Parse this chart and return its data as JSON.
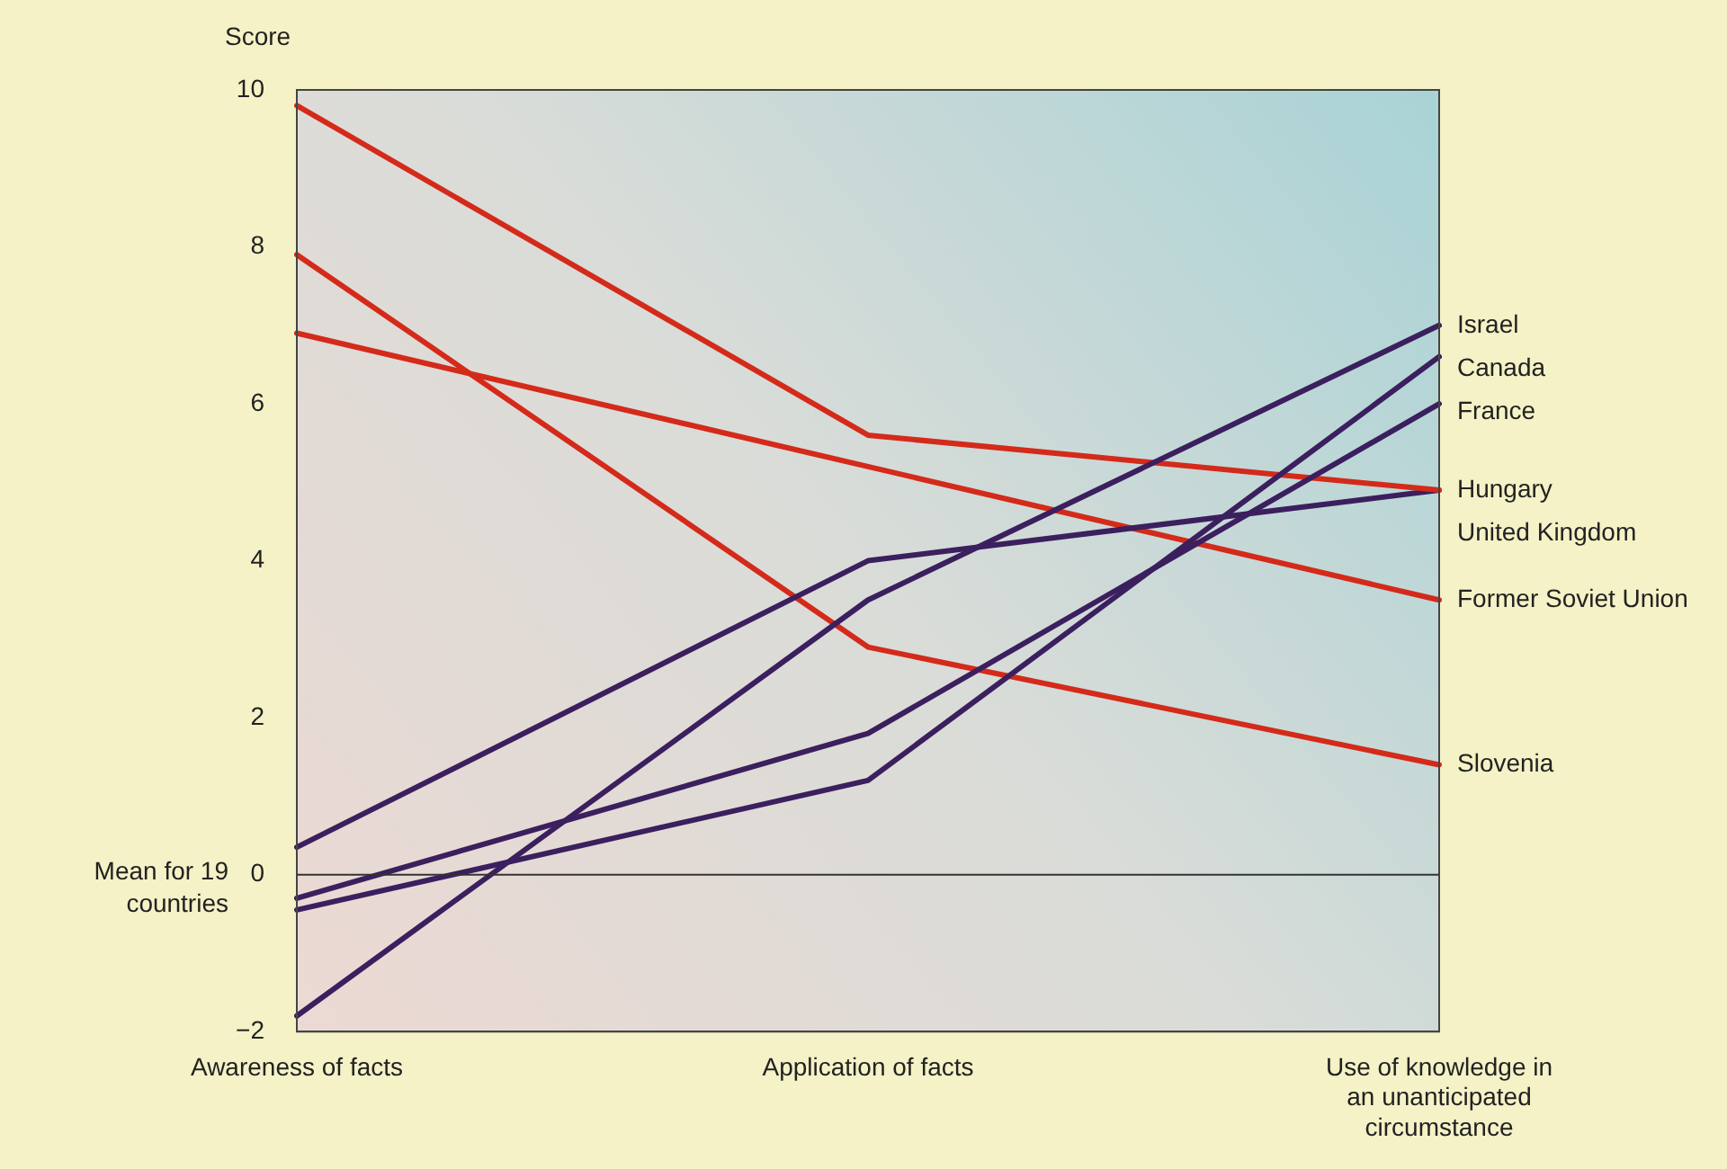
{
  "chart_data": {
    "type": "line",
    "ylabel": "Score",
    "categories": [
      "Awareness of facts",
      "Application of facts",
      "Use of knowledge in an unanticipated circumstance"
    ],
    "series": [
      {
        "name": "Israel",
        "color": "#3b1f5e",
        "values": [
          -1.8,
          3.5,
          7.0
        ]
      },
      {
        "name": "Canada",
        "color": "#3b1f5e",
        "values": [
          -0.45,
          1.2,
          6.6
        ]
      },
      {
        "name": "France",
        "color": "#3b1f5e",
        "values": [
          -0.3,
          1.8,
          6.0
        ]
      },
      {
        "name": "Hungary",
        "color": "#d42a1a",
        "values": [
          9.8,
          5.6,
          4.9
        ]
      },
      {
        "name": "United Kingdom",
        "color": "#3b1f5e",
        "values": [
          0.35,
          4.0,
          4.9
        ]
      },
      {
        "name": "Former Soviet Union",
        "color": "#d42a1a",
        "values": [
          6.9,
          5.2,
          3.5
        ]
      },
      {
        "name": "Slovenia",
        "color": "#d42a1a",
        "values": [
          7.9,
          2.9,
          1.4
        ]
      }
    ],
    "ylim": [
      -2,
      10
    ],
    "yticks": [
      -2,
      0,
      2,
      4,
      6,
      8,
      10
    ],
    "ref_lines": [
      {
        "axis": "y",
        "value": 0,
        "label": "Mean for 19 countries",
        "color": "#333333"
      }
    ],
    "grid": false,
    "legend": false,
    "marker": "none",
    "line_style": "solid"
  }
}
